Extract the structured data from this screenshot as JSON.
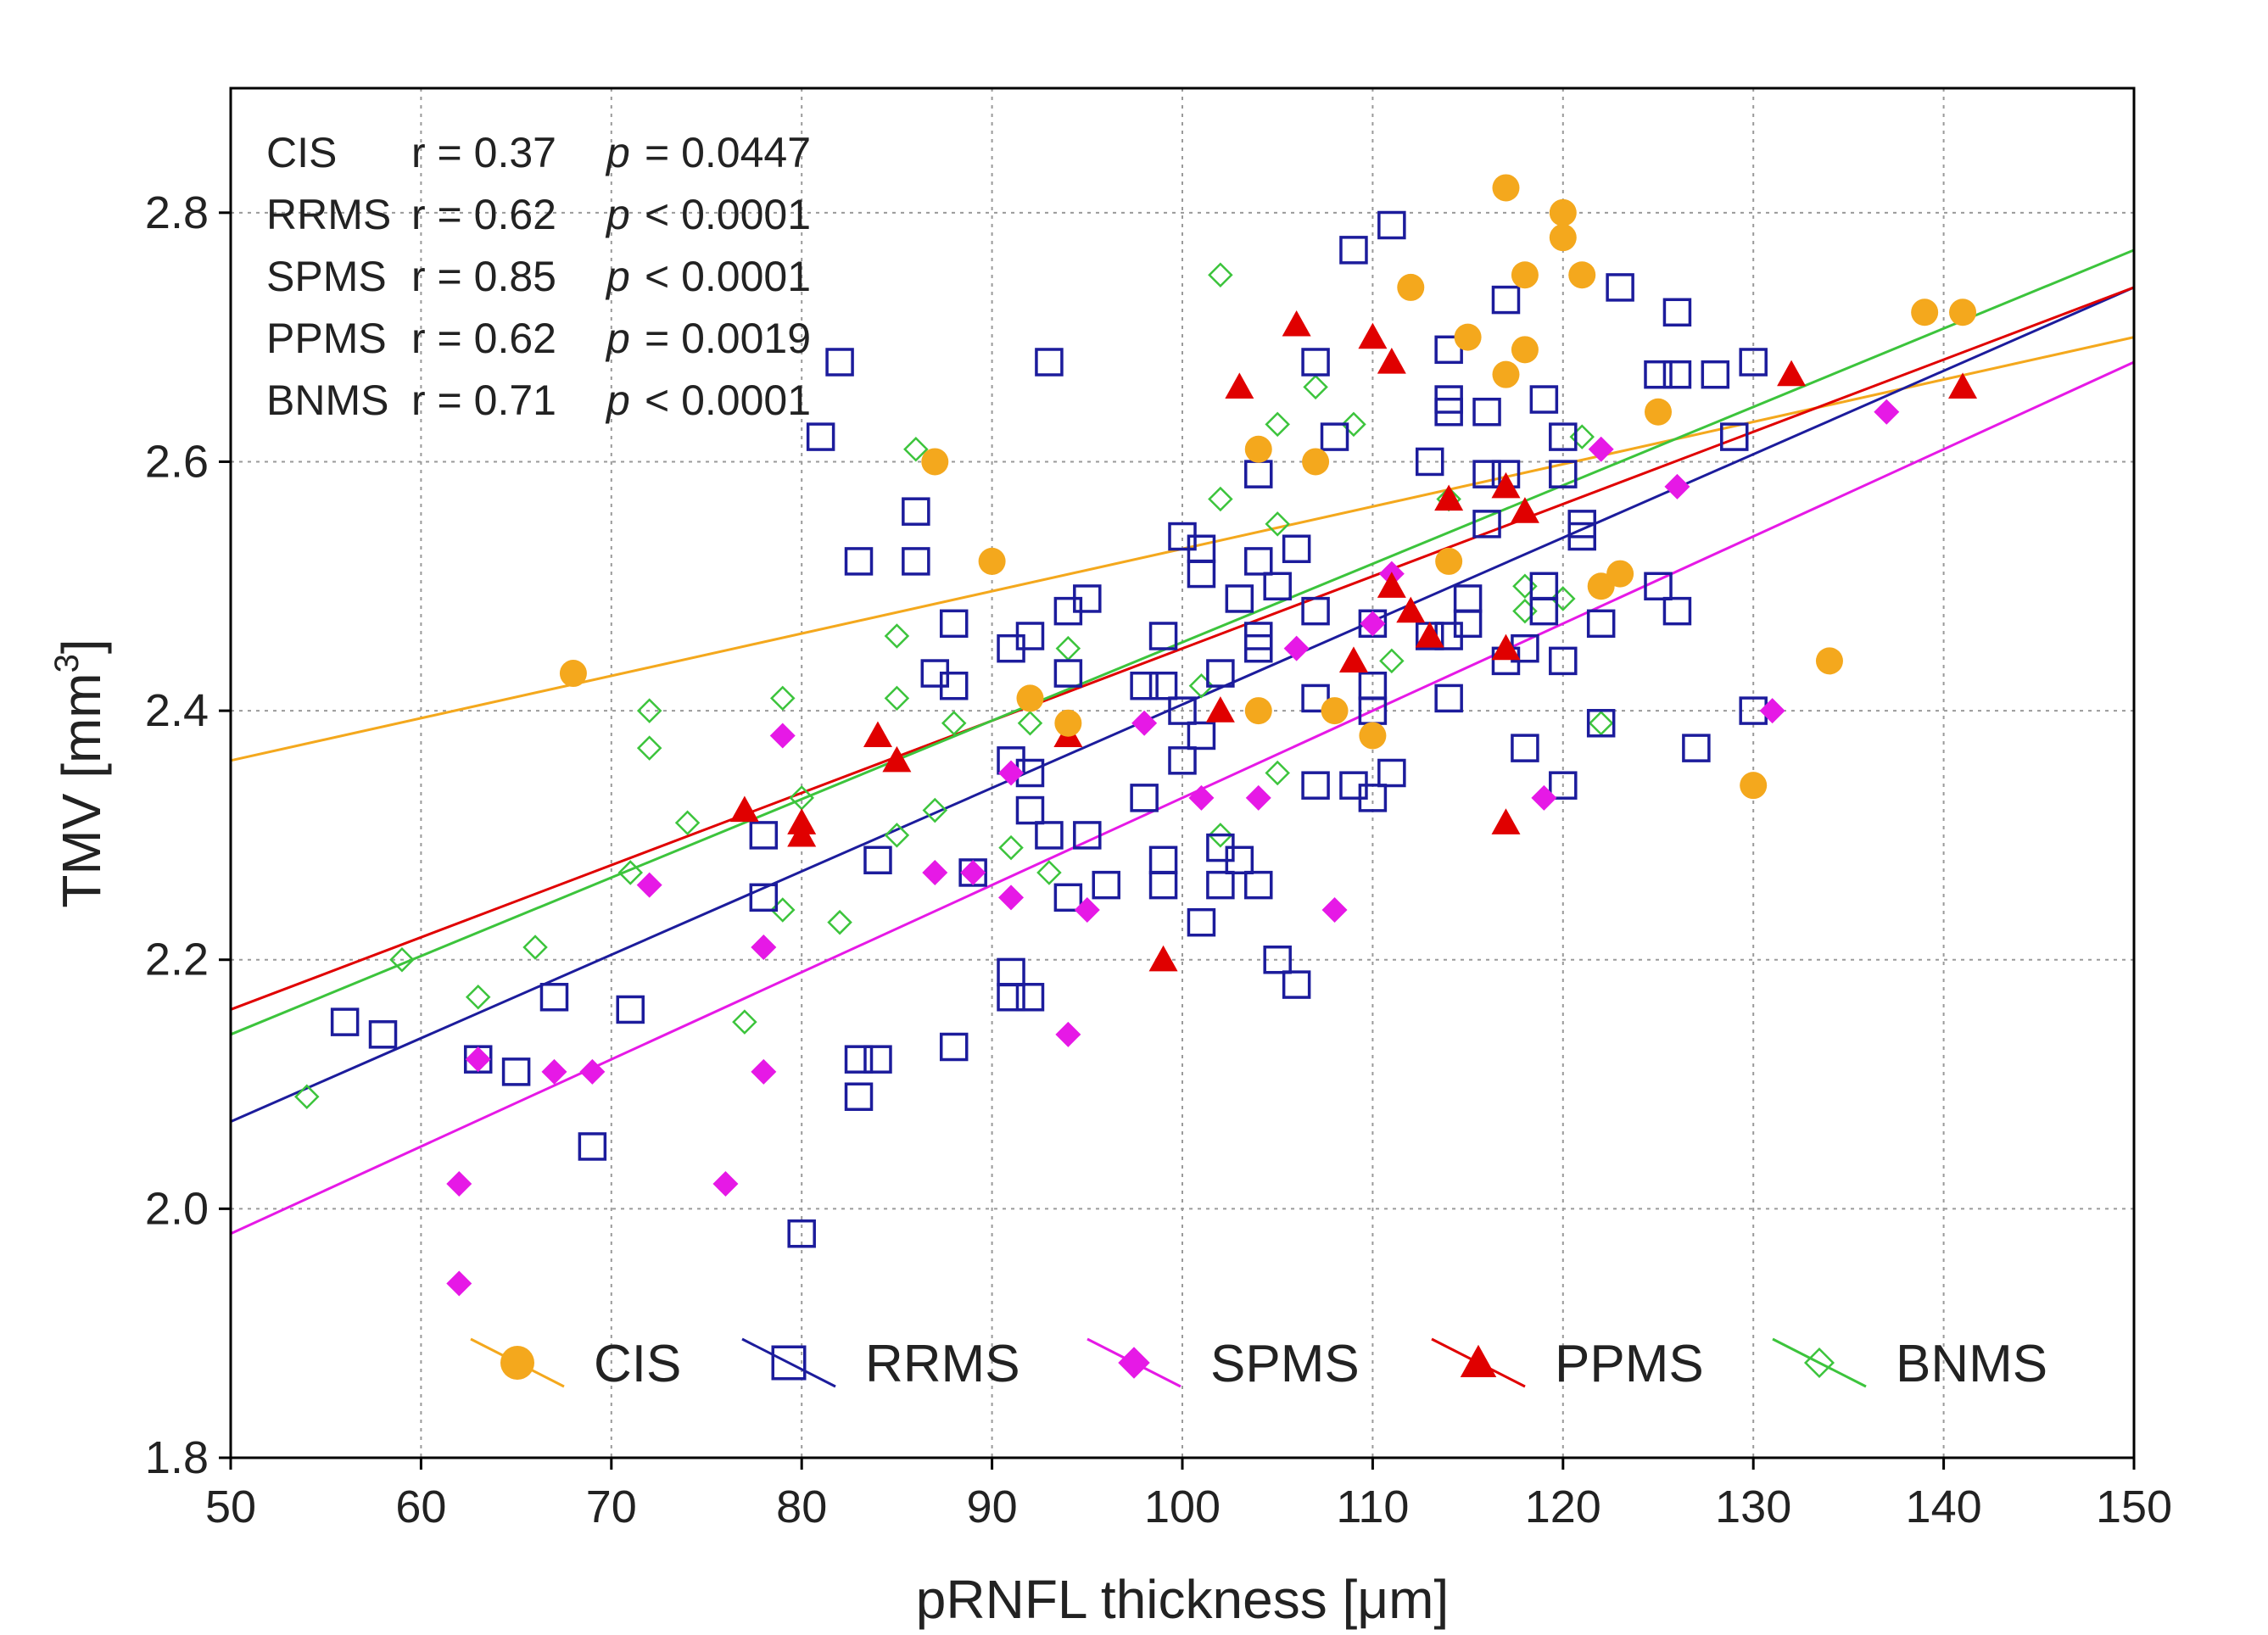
{
  "chart_data": {
    "type": "scatter",
    "title": "",
    "xlabel": "pRNFL thickness [μm]",
    "ylabel_main": "TMV [mm",
    "ylabel_sup": "3",
    "ylabel_close": "]",
    "xlim": [
      50,
      150
    ],
    "ylim": [
      1.8,
      2.9
    ],
    "xticks": [
      "50",
      "60",
      "70",
      "80",
      "90",
      "100",
      "110",
      "120",
      "130",
      "140",
      "150"
    ],
    "yticks": [
      "1.8",
      "2.0",
      "2.2",
      "2.4",
      "2.6",
      "2.8"
    ],
    "grid": true,
    "legend_position": "bottom",
    "stats": [
      {
        "group": "CIS",
        "r": "r = 0.37",
        "p_label": "p",
        "p_value": "= 0.0447"
      },
      {
        "group": "RRMS",
        "r": "r = 0.62",
        "p_label": "p",
        "p_value": "< 0.0001"
      },
      {
        "group": "SPMS",
        "r": "r = 0.85",
        "p_label": "p",
        "p_value": "< 0.0001"
      },
      {
        "group": "PPMS",
        "r": "r = 0.62",
        "p_label": "p",
        "p_value": "= 0.0019"
      },
      {
        "group": "BNMS",
        "r": "r = 0.71",
        "p_label": "p",
        "p_value": "< 0.0001"
      }
    ],
    "series": [
      {
        "name": "CIS",
        "marker": "circle",
        "color": "#f4a81d",
        "fit": [
          [
            50,
            2.36
          ],
          [
            150,
            2.7
          ]
        ],
        "points": [
          [
            68,
            2.43
          ],
          [
            87,
            2.6
          ],
          [
            90,
            2.52
          ],
          [
            92,
            2.41
          ],
          [
            94,
            2.39
          ],
          [
            104,
            2.61
          ],
          [
            104,
            2.4
          ],
          [
            107,
            2.6
          ],
          [
            108,
            2.4
          ],
          [
            110,
            2.38
          ],
          [
            112,
            2.74
          ],
          [
            114,
            2.52
          ],
          [
            115,
            2.7
          ],
          [
            117,
            2.82
          ],
          [
            117,
            2.67
          ],
          [
            118,
            2.75
          ],
          [
            118,
            2.69
          ],
          [
            120,
            2.8
          ],
          [
            120,
            2.78
          ],
          [
            121,
            2.75
          ],
          [
            122,
            2.5
          ],
          [
            123,
            2.51
          ],
          [
            125,
            2.64
          ],
          [
            130,
            2.34
          ],
          [
            134,
            2.44
          ],
          [
            139,
            2.72
          ],
          [
            141,
            2.72
          ]
        ]
      },
      {
        "name": "RRMS",
        "marker": "square",
        "color": "#1c1c9c",
        "fit": [
          [
            50,
            2.07
          ],
          [
            150,
            2.74
          ]
        ],
        "points": [
          [
            56,
            2.15
          ],
          [
            58,
            2.14
          ],
          [
            63,
            2.12
          ],
          [
            65,
            2.11
          ],
          [
            67,
            2.17
          ],
          [
            69,
            2.05
          ],
          [
            71,
            2.16
          ],
          [
            78,
            2.3
          ],
          [
            78,
            2.25
          ],
          [
            80,
            1.98
          ],
          [
            81,
            2.62
          ],
          [
            82,
            2.68
          ],
          [
            83,
            2.52
          ],
          [
            83,
            2.12
          ],
          [
            83,
            2.09
          ],
          [
            84,
            2.12
          ],
          [
            84,
            2.28
          ],
          [
            86,
            2.56
          ],
          [
            86,
            2.52
          ],
          [
            87,
            2.43
          ],
          [
            88,
            2.47
          ],
          [
            88,
            2.42
          ],
          [
            88,
            2.13
          ],
          [
            89,
            2.27
          ],
          [
            91,
            2.45
          ],
          [
            91,
            2.36
          ],
          [
            91,
            2.19
          ],
          [
            91,
            2.17
          ],
          [
            92,
            2.46
          ],
          [
            92,
            2.35
          ],
          [
            92,
            2.32
          ],
          [
            92,
            2.17
          ],
          [
            93,
            2.68
          ],
          [
            93,
            2.3
          ],
          [
            94,
            2.48
          ],
          [
            94,
            2.43
          ],
          [
            94,
            2.25
          ],
          [
            95,
            2.49
          ],
          [
            95,
            2.3
          ],
          [
            96,
            2.26
          ],
          [
            98,
            2.42
          ],
          [
            98,
            2.33
          ],
          [
            99,
            2.46
          ],
          [
            99,
            2.42
          ],
          [
            99,
            2.28
          ],
          [
            99,
            2.26
          ],
          [
            100,
            2.54
          ],
          [
            100,
            2.4
          ],
          [
            100,
            2.36
          ],
          [
            101,
            2.53
          ],
          [
            101,
            2.51
          ],
          [
            101,
            2.38
          ],
          [
            101,
            2.23
          ],
          [
            102,
            2.43
          ],
          [
            102,
            2.29
          ],
          [
            102,
            2.26
          ],
          [
            103,
            2.49
          ],
          [
            103,
            2.28
          ],
          [
            104,
            2.59
          ],
          [
            104,
            2.52
          ],
          [
            104,
            2.46
          ],
          [
            104,
            2.45
          ],
          [
            104,
            2.26
          ],
          [
            105,
            2.5
          ],
          [
            105,
            2.2
          ],
          [
            106,
            2.53
          ],
          [
            106,
            2.18
          ],
          [
            107,
            2.68
          ],
          [
            107,
            2.48
          ],
          [
            107,
            2.41
          ],
          [
            107,
            2.34
          ],
          [
            108,
            2.62
          ],
          [
            109,
            2.77
          ],
          [
            109,
            2.34
          ],
          [
            110,
            2.47
          ],
          [
            110,
            2.42
          ],
          [
            110,
            2.4
          ],
          [
            110,
            2.33
          ],
          [
            111,
            2.79
          ],
          [
            111,
            2.35
          ],
          [
            113,
            2.6
          ],
          [
            113,
            2.46
          ],
          [
            114,
            2.69
          ],
          [
            114,
            2.65
          ],
          [
            114,
            2.64
          ],
          [
            114,
            2.46
          ],
          [
            114,
            2.41
          ],
          [
            115,
            2.49
          ],
          [
            115,
            2.47
          ],
          [
            116,
            2.64
          ],
          [
            116,
            2.59
          ],
          [
            116,
            2.55
          ],
          [
            117,
            2.73
          ],
          [
            117,
            2.59
          ],
          [
            117,
            2.44
          ],
          [
            118,
            2.45
          ],
          [
            118,
            2.37
          ],
          [
            119,
            2.65
          ],
          [
            119,
            2.5
          ],
          [
            119,
            2.48
          ],
          [
            120,
            2.62
          ],
          [
            120,
            2.59
          ],
          [
            120,
            2.44
          ],
          [
            120,
            2.34
          ],
          [
            121,
            2.55
          ],
          [
            121,
            2.54
          ],
          [
            122,
            2.47
          ],
          [
            122,
            2.39
          ],
          [
            123,
            2.74
          ],
          [
            125,
            2.67
          ],
          [
            125,
            2.5
          ],
          [
            126,
            2.72
          ],
          [
            126,
            2.67
          ],
          [
            126,
            2.48
          ],
          [
            127,
            2.37
          ],
          [
            128,
            2.67
          ],
          [
            129,
            2.62
          ],
          [
            130,
            2.68
          ],
          [
            130,
            2.4
          ]
        ]
      },
      {
        "name": "SPMS",
        "marker": "diamond",
        "color": "#e619e6",
        "fit": [
          [
            50,
            1.98
          ],
          [
            150,
            2.68
          ]
        ],
        "points": [
          [
            62,
            2.02
          ],
          [
            62,
            1.94
          ],
          [
            63,
            2.12
          ],
          [
            67,
            2.11
          ],
          [
            69,
            2.11
          ],
          [
            72,
            2.26
          ],
          [
            76,
            2.02
          ],
          [
            78,
            2.11
          ],
          [
            78,
            2.21
          ],
          [
            79,
            2.38
          ],
          [
            87,
            2.27
          ],
          [
            89,
            2.27
          ],
          [
            91,
            2.35
          ],
          [
            91,
            2.25
          ],
          [
            94,
            2.14
          ],
          [
            95,
            2.24
          ],
          [
            98,
            2.39
          ],
          [
            101,
            2.33
          ],
          [
            104,
            2.33
          ],
          [
            106,
            2.45
          ],
          [
            108,
            2.24
          ],
          [
            110,
            2.47
          ],
          [
            111,
            2.51
          ],
          [
            119,
            2.33
          ],
          [
            122,
            2.61
          ],
          [
            126,
            2.58
          ],
          [
            131,
            2.4
          ],
          [
            137,
            2.64
          ]
        ]
      },
      {
        "name": "PPMS",
        "marker": "triangle",
        "color": "#e00000",
        "fit": [
          [
            50,
            2.16
          ],
          [
            150,
            2.74
          ]
        ],
        "points": [
          [
            77,
            2.32
          ],
          [
            80,
            2.31
          ],
          [
            80,
            2.3
          ],
          [
            84,
            2.38
          ],
          [
            85,
            2.36
          ],
          [
            94,
            2.38
          ],
          [
            99,
            2.2
          ],
          [
            102,
            2.4
          ],
          [
            103,
            2.66
          ],
          [
            106,
            2.71
          ],
          [
            109,
            2.44
          ],
          [
            110,
            2.7
          ],
          [
            111,
            2.68
          ],
          [
            111,
            2.5
          ],
          [
            112,
            2.48
          ],
          [
            113,
            2.46
          ],
          [
            114,
            2.57
          ],
          [
            117,
            2.58
          ],
          [
            117,
            2.45
          ],
          [
            117,
            2.31
          ],
          [
            118,
            2.56
          ],
          [
            132,
            2.67
          ],
          [
            141,
            2.66
          ]
        ]
      },
      {
        "name": "BNMS",
        "marker": "open-diamond",
        "color": "#3cc43c",
        "fit": [
          [
            50,
            2.14
          ],
          [
            150,
            2.77
          ]
        ],
        "points": [
          [
            54,
            2.09
          ],
          [
            59,
            2.2
          ],
          [
            63,
            2.17
          ],
          [
            66,
            2.21
          ],
          [
            71,
            2.27
          ],
          [
            72,
            2.4
          ],
          [
            72,
            2.37
          ],
          [
            74,
            2.31
          ],
          [
            77,
            2.15
          ],
          [
            78,
            2.21
          ],
          [
            79,
            2.41
          ],
          [
            79,
            2.24
          ],
          [
            80,
            2.33
          ],
          [
            82,
            2.23
          ],
          [
            85,
            2.46
          ],
          [
            85,
            2.41
          ],
          [
            85,
            2.3
          ],
          [
            86,
            2.61
          ],
          [
            87,
            2.32
          ],
          [
            88,
            2.39
          ],
          [
            91,
            2.29
          ],
          [
            92,
            2.39
          ],
          [
            93,
            2.27
          ],
          [
            94,
            2.45
          ],
          [
            101,
            2.42
          ],
          [
            102,
            2.75
          ],
          [
            102,
            2.57
          ],
          [
            102,
            2.3
          ],
          [
            105,
            2.63
          ],
          [
            105,
            2.55
          ],
          [
            105,
            2.35
          ],
          [
            107,
            2.66
          ],
          [
            109,
            2.63
          ],
          [
            111,
            2.44
          ],
          [
            114,
            2.57
          ],
          [
            118,
            2.5
          ],
          [
            118,
            2.48
          ],
          [
            120,
            2.49
          ],
          [
            121,
            2.62
          ],
          [
            122,
            2.39
          ]
        ]
      }
    ]
  }
}
